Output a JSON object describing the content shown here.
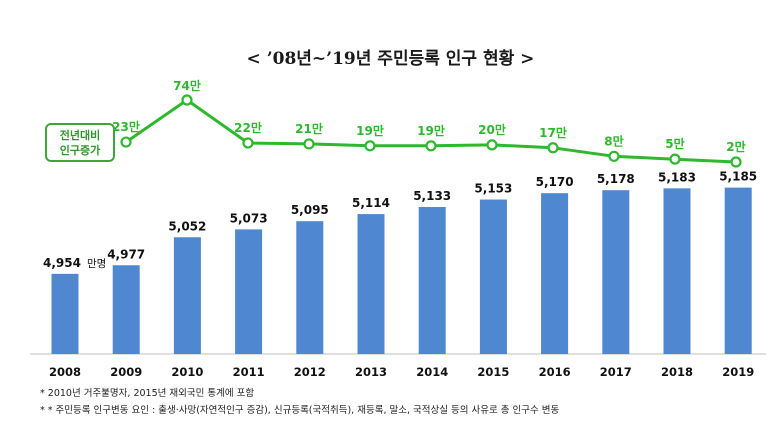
{
  "title": "< ’08년~’19년 주민등록 인구 현황 >",
  "badge": {
    "line1": "전년대비",
    "line2": "인구증가"
  },
  "chart_data": [
    {
      "type": "bar",
      "name": "population",
      "categories": [
        "2008",
        "2009",
        "2010",
        "2011",
        "2012",
        "2013",
        "2014",
        "2015",
        "2016",
        "2017",
        "2018",
        "2019"
      ],
      "values": [
        4954,
        4977,
        5052,
        5073,
        5095,
        5114,
        5133,
        5153,
        5170,
        5178,
        5183,
        5185
      ],
      "labels": [
        "4,954",
        "4,977",
        "5,052",
        "5,073",
        "5,095",
        "5,114",
        "5,133",
        "5,153",
        "5,170",
        "5,178",
        "5,183",
        "5,185"
      ],
      "unit_label": "만명",
      "color": "#4f87d0"
    },
    {
      "type": "line",
      "name": "yearly-increase",
      "categories": [
        "2008",
        "2009",
        "2010",
        "2011",
        "2012",
        "2013",
        "2014",
        "2015",
        "2016",
        "2017",
        "2018",
        "2019"
      ],
      "values": [
        23,
        74,
        22,
        21,
        19,
        19,
        20,
        17,
        8,
        5,
        2
      ],
      "x_index": [
        0,
        1,
        2,
        3,
        4,
        5,
        6,
        7,
        8,
        9,
        10
      ],
      "x_labels": [
        "2009",
        "2010",
        "2011",
        "2012",
        "2013",
        "2014",
        "2015",
        "2016",
        "2017",
        "2018",
        "2019"
      ],
      "labels": [
        "23만",
        "74만",
        "22만",
        "21만",
        "19만",
        "19만",
        "20만",
        "17만",
        "8만",
        "5만",
        "2만"
      ],
      "color": "#2eb82e"
    }
  ],
  "notes": [
    "*  2010년 거주불명자, 2015년 재외국민 통계에 포함",
    "* * 주민등록 인구변동 요인 : 출생·사망(자연적인구 증감), 신규등록(국적취득), 재등록, 말소, 국적상실 등의 사유로 총 인구수 변동"
  ]
}
